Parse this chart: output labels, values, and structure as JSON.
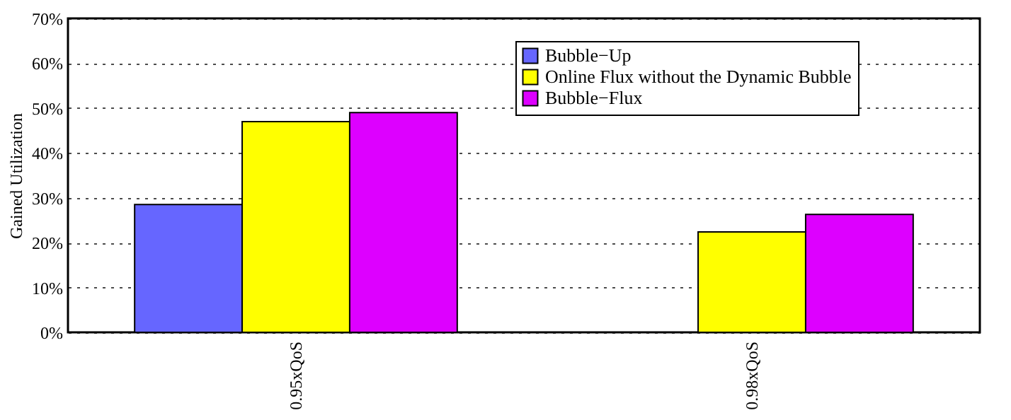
{
  "chart_data": {
    "type": "bar",
    "ylabel": "Gained Utilization",
    "categories": [
      "0.95xQoS",
      "0.98xQoS"
    ],
    "series": [
      {
        "name": "Bubble−Up",
        "color": "#6666ff",
        "values": [
          28.5,
          null
        ]
      },
      {
        "name": "Online Flux without the Dynamic Bubble",
        "color": "#ffff00",
        "values": [
          47,
          22.4
        ]
      },
      {
        "name": "Bubble−Flux",
        "color": "#dd00ff",
        "values": [
          49,
          26.3
        ]
      }
    ],
    "ylim": [
      0,
      70
    ],
    "yticks": [
      {
        "value": 0,
        "label": "0%"
      },
      {
        "value": 10,
        "label": "10%"
      },
      {
        "value": 20,
        "label": "20%"
      },
      {
        "value": 30,
        "label": "30%"
      },
      {
        "value": 40,
        "label": "40%"
      },
      {
        "value": 50,
        "label": "50%"
      },
      {
        "value": 60,
        "label": "60%"
      },
      {
        "value": 70,
        "label": "70%"
      }
    ],
    "grid": "y",
    "legend": "top right"
  }
}
